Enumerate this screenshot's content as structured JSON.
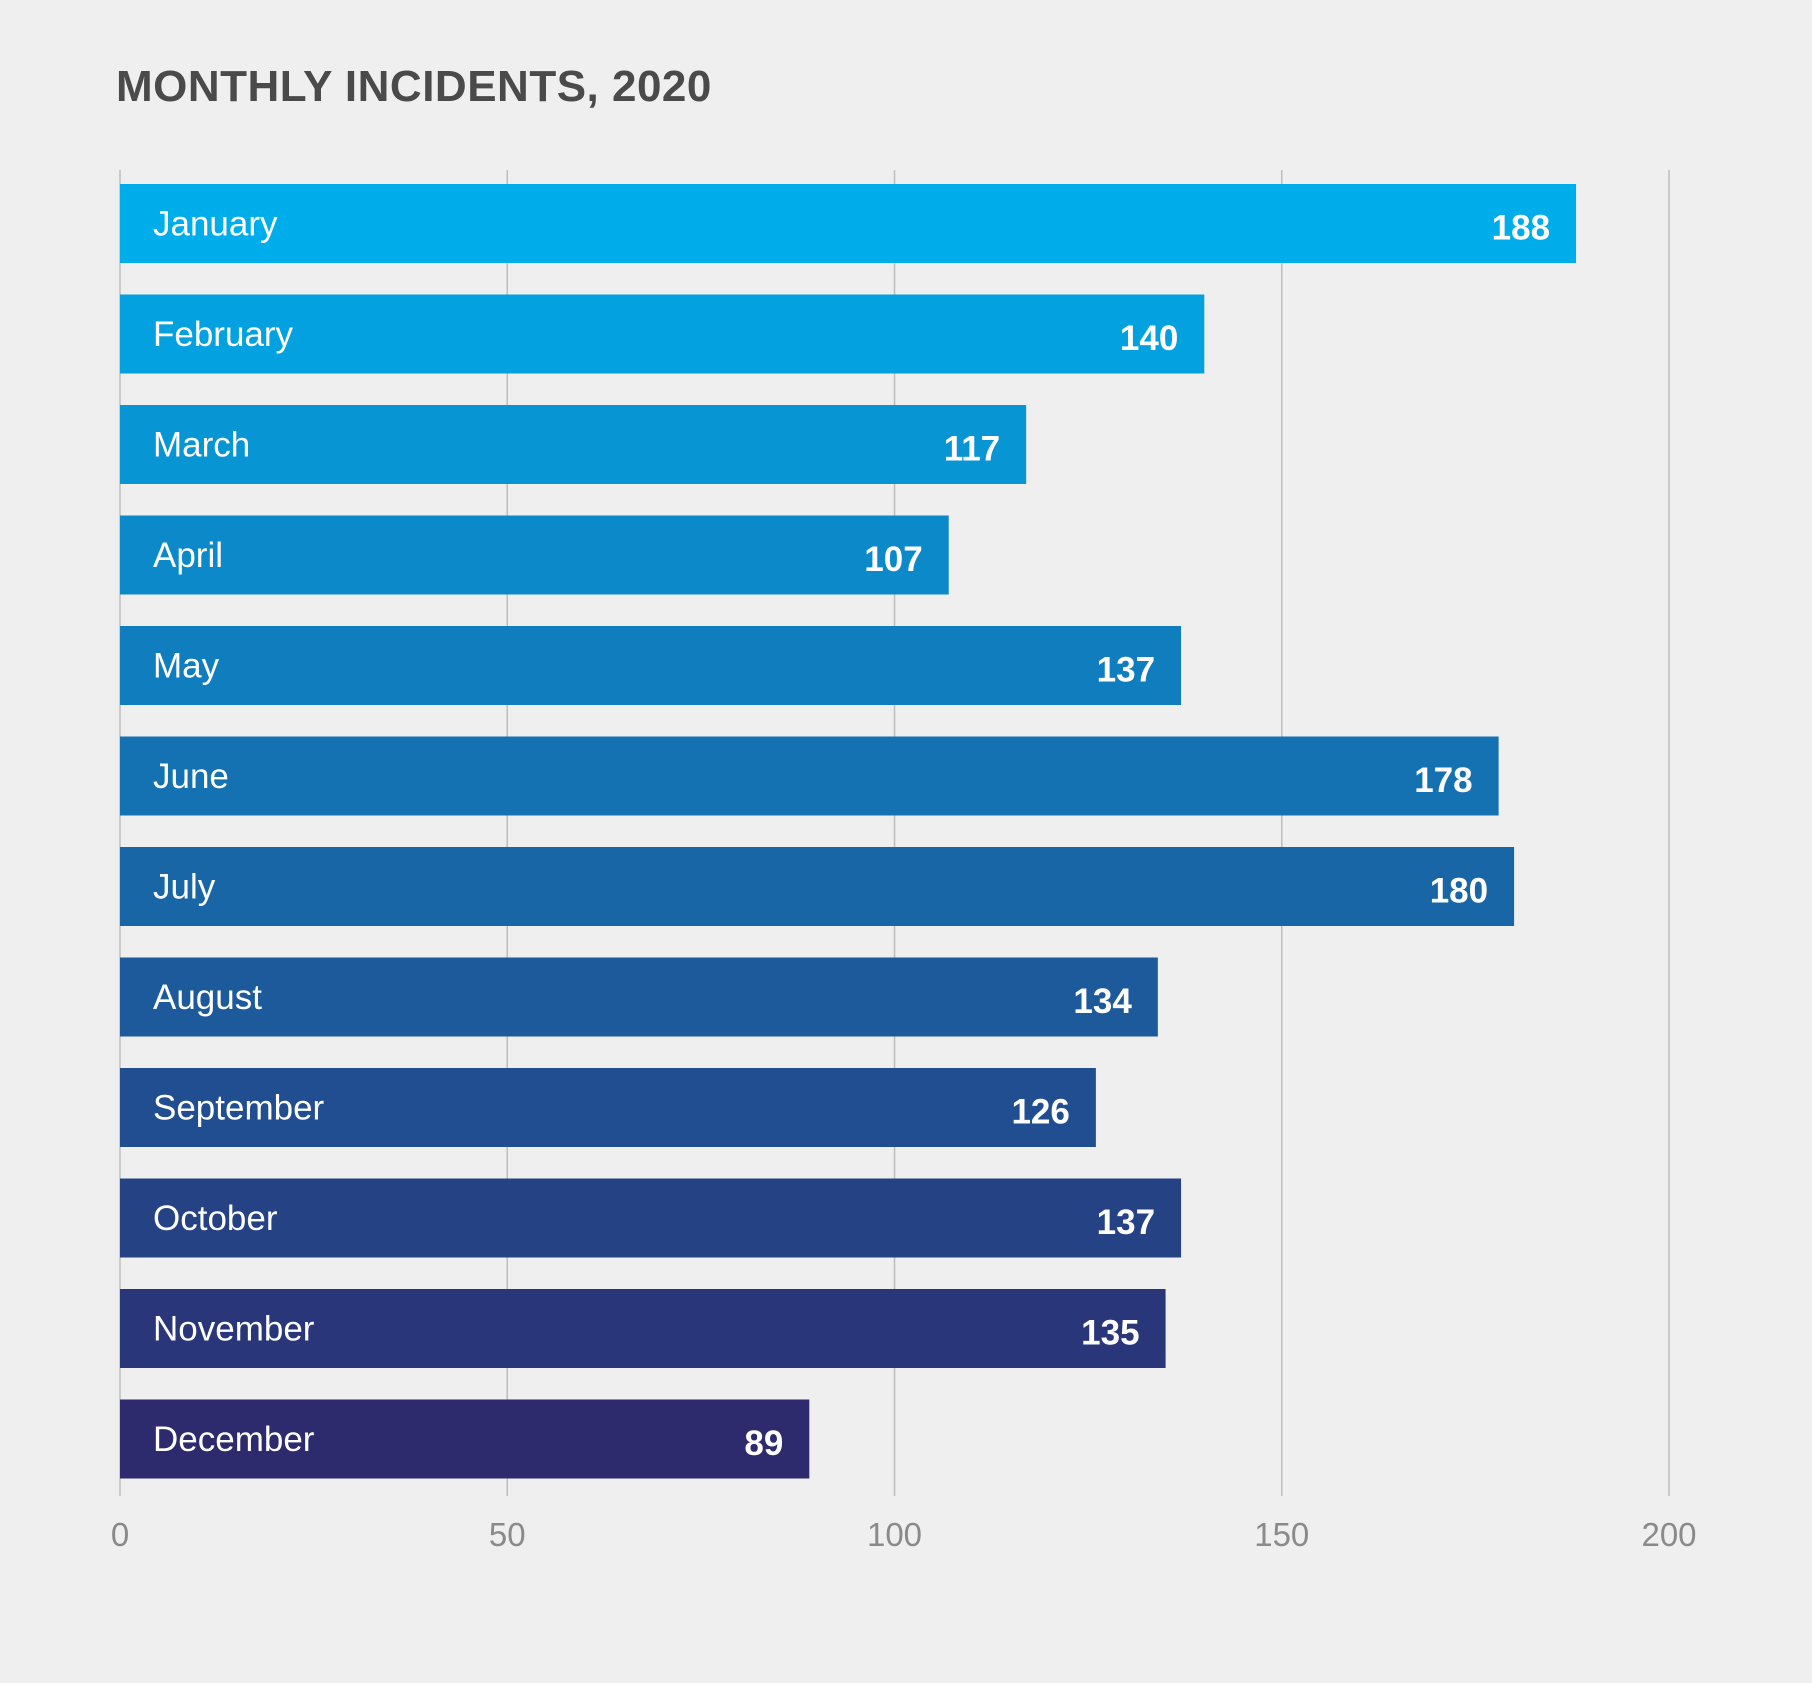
{
  "chart_data": {
    "type": "bar",
    "orientation": "horizontal",
    "title": "MONTHLY INCIDENTS, 2020",
    "xlabel": "",
    "ylabel": "",
    "categories": [
      "January",
      "February",
      "March",
      "April",
      "May",
      "June",
      "July",
      "August",
      "September",
      "October",
      "November",
      "December"
    ],
    "values": [
      188,
      140,
      117,
      107,
      137,
      178,
      180,
      134,
      126,
      137,
      135,
      89
    ],
    "xlim": [
      0,
      200
    ],
    "xticks": [
      0,
      50,
      100,
      150,
      200
    ],
    "grid": true,
    "legend": "none",
    "colors": {
      "bar_start": "#00adeb",
      "bar_end": "#2d2a6e",
      "background": "#efefef",
      "title": "#4a4a4a"
    }
  }
}
